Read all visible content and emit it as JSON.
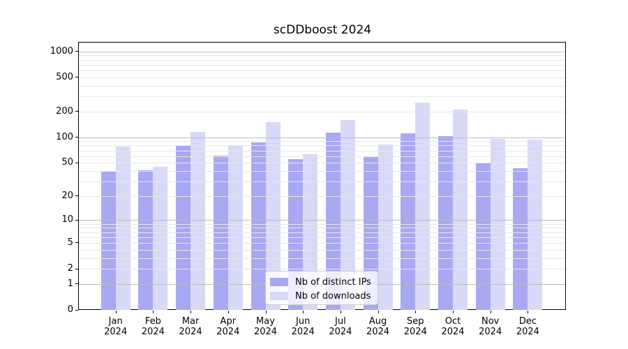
{
  "chart_data": {
    "type": "bar",
    "title": "scDDboost 2024",
    "x_months": [
      "Jan",
      "Feb",
      "Mar",
      "Apr",
      "May",
      "Jun",
      "Jul",
      "Aug",
      "Sep",
      "Oct",
      "Nov",
      "Dec"
    ],
    "x_year": "2024",
    "series": [
      {
        "name": "Nb of distinct IPs",
        "color": "#a8a8f2",
        "values": [
          39,
          41,
          79,
          61,
          87,
          55,
          114,
          59,
          112,
          104,
          50,
          43
        ]
      },
      {
        "name": "Nb of downloads",
        "color": "#d8d8f7",
        "values": [
          78,
          45,
          115,
          81,
          150,
          63,
          160,
          83,
          255,
          210,
          96,
          94
        ]
      }
    ],
    "yscale": "log10(value+1)",
    "ylim": [
      0,
      1250
    ],
    "yticks": [
      0,
      1,
      2,
      5,
      10,
      20,
      50,
      100,
      200,
      500,
      1000
    ],
    "grid": {
      "major_lines": [
        1,
        10,
        100,
        1000
      ],
      "minor_lines": [
        2,
        3,
        4,
        5,
        6,
        7,
        8,
        9,
        20,
        30,
        40,
        50,
        60,
        70,
        80,
        90,
        200,
        300,
        400,
        500,
        600,
        700,
        800,
        900
      ]
    },
    "legend_position": "lower center"
  },
  "colors": {
    "background": "#ffffff",
    "axis": "#000000",
    "grid_major": "#bbbbbb",
    "grid_minor": "#e7e7e7",
    "bar_distinct_ips": "#a8a8f2",
    "bar_downloads": "#d8d8f7",
    "legend_border": "#cccccc"
  }
}
